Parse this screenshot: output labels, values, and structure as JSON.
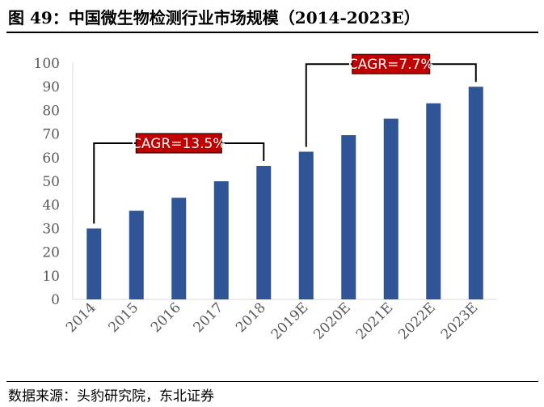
{
  "title": "图 49：中国微生物检测行业市场规模（2014-2023E）",
  "source": "数据来源：头豹研究院，东北证券",
  "chart_data": {
    "type": "bar",
    "categories": [
      "2014",
      "2015",
      "2016",
      "2017",
      "2018",
      "2019E",
      "2020E",
      "2021E",
      "2022E",
      "2023E"
    ],
    "values": [
      30,
      37.5,
      43,
      50,
      56.5,
      62.5,
      69.5,
      76.5,
      83,
      90
    ],
    "ylim": [
      0,
      100
    ],
    "yticks": [
      0,
      10,
      20,
      30,
      40,
      50,
      60,
      70,
      80,
      90,
      100
    ],
    "bar_color": "#2f5597",
    "annotations": [
      {
        "label": "CAGR=13.5%",
        "from": "2014",
        "to": "2018",
        "box_color": "#c00000"
      },
      {
        "label": "CAGR=7.7%",
        "from": "2019E",
        "to": "2023E",
        "box_color": "#c00000"
      }
    ],
    "grid": false,
    "legend": "none"
  }
}
